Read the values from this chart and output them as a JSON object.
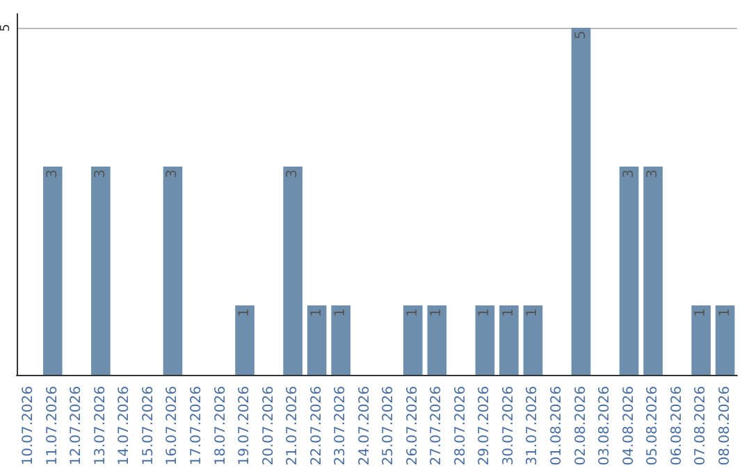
{
  "chart_data": {
    "type": "bar",
    "categories": [
      "10.07.2026",
      "11.07.2026",
      "12.07.2026",
      "13.07.2026",
      "14.07.2026",
      "15.07.2026",
      "16.07.2026",
      "17.07.2026",
      "18.07.2026",
      "19.07.2026",
      "20.07.2026",
      "21.07.2026",
      "22.07.2026",
      "23.07.2026",
      "24.07.2026",
      "25.07.2026",
      "26.07.2026",
      "27.07.2026",
      "28.07.2026",
      "29.07.2026",
      "30.07.2026",
      "31.07.2026",
      "01.08.2026",
      "02.08.2026",
      "03.08.2026",
      "04.08.2026",
      "05.08.2026",
      "06.08.2026",
      "07.08.2026",
      "08.08.2026"
    ],
    "values": [
      0,
      3,
      0,
      3,
      0,
      0,
      3,
      0,
      0,
      1,
      0,
      3,
      1,
      1,
      0,
      0,
      1,
      1,
      0,
      1,
      1,
      1,
      0,
      5,
      0,
      3,
      3,
      0,
      1,
      1
    ],
    "value_labels": [
      null,
      "3",
      null,
      "3",
      null,
      null,
      "3",
      null,
      null,
      "1",
      null,
      "3",
      "1",
      "1",
      null,
      null,
      "1",
      "1",
      null,
      "1",
      "1",
      "1",
      null,
      "5",
      null,
      "3",
      "3",
      null,
      "1",
      "1"
    ],
    "color": "#6d8fad",
    "ylim": [
      0,
      5.2
    ],
    "yticks": [
      5
    ],
    "grid": "y"
  }
}
